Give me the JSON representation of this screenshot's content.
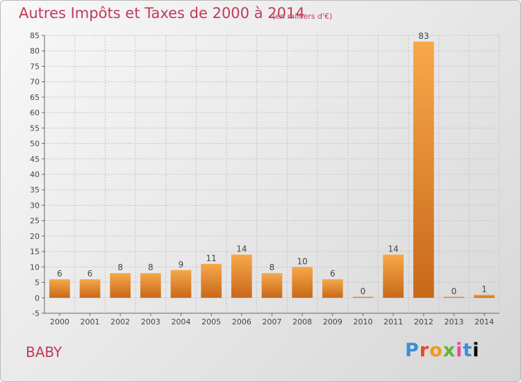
{
  "header": {
    "title": "Autres Impôts et Taxes de 2000 à 2014",
    "unit": "(en milliers d'€)"
  },
  "footer": {
    "place": "BABY",
    "logo_letters": [
      "P",
      "r",
      "o",
      "x",
      "i",
      "t",
      "i"
    ]
  },
  "chart_data": {
    "type": "bar",
    "title": "Autres Impôts et Taxes de 2000 à 2014",
    "subtitle": "(en milliers d'€)",
    "categories": [
      "2000",
      "2001",
      "2002",
      "2003",
      "2004",
      "2005",
      "2006",
      "2007",
      "2008",
      "2009",
      "2010",
      "2011",
      "2012",
      "2013",
      "2014"
    ],
    "values": [
      6,
      6,
      8,
      8,
      9,
      11,
      14,
      8,
      10,
      6,
      0,
      14,
      83,
      0,
      1
    ],
    "ylim": [
      -5,
      85
    ],
    "yticks": [
      -5,
      0,
      5,
      10,
      15,
      20,
      25,
      30,
      35,
      40,
      45,
      50,
      55,
      60,
      65,
      70,
      75,
      80,
      85
    ],
    "grid": true,
    "colors": {
      "bar_light": "#f7a84a",
      "bar_dark": "#c8681a",
      "grid": "#c4c4c4",
      "axis": "#666666"
    }
  }
}
